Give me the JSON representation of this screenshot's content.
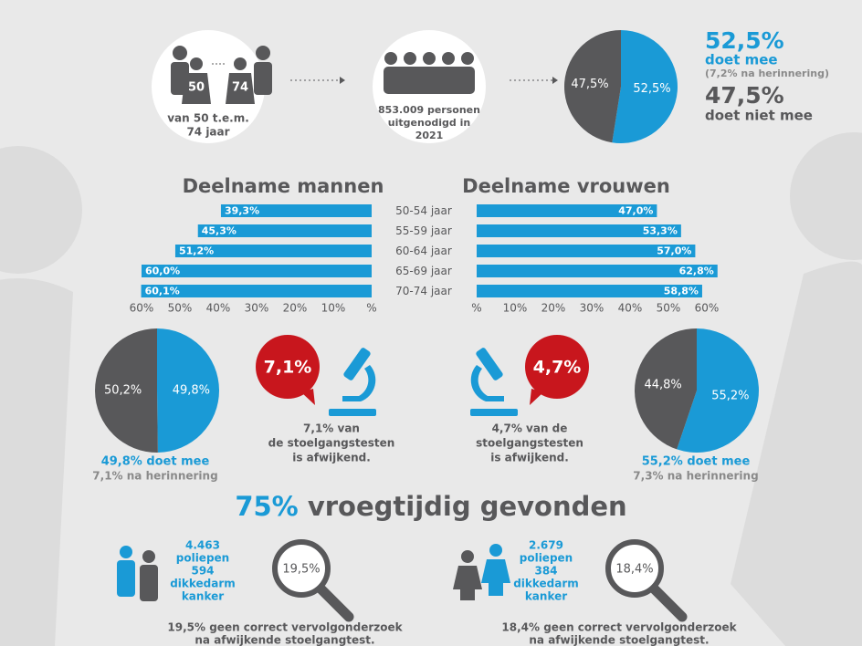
{
  "intro": {
    "age_from": "50",
    "age_to": "74",
    "age_lines": [
      "van 50 t.e.m.",
      "74 jaar"
    ],
    "invited_lines": [
      "853.009 personen",
      "uitgenodigd in",
      "2021"
    ]
  },
  "summary": {
    "participate": "52,5%",
    "participate_label": "doet mee",
    "reminder": "(7,2% na herinnering)",
    "not_participate": "47,5%",
    "not_participate_label": "doet niet mee"
  },
  "chart_data": [
    {
      "type": "pie",
      "values": [
        52.5,
        47.5
      ],
      "value_labels": [
        "52,5%",
        "47,5%"
      ],
      "colors": [
        "#1a9ad6",
        "#58585a"
      ]
    },
    {
      "type": "bar",
      "title": "Deelname mannen",
      "categories": [
        "50-54 jaar",
        "55-59 jaar",
        "60-64 jaar",
        "65-69 jaar",
        "70-74 jaar"
      ],
      "values": [
        39.3,
        45.3,
        51.2,
        60.0,
        60.1
      ],
      "value_labels": [
        "39,3%",
        "45,3%",
        "51,2%",
        "60,0%",
        "60,1%"
      ],
      "color": "#1a9ad6",
      "xlim": [
        0,
        60
      ],
      "x_reversed": true,
      "xticks": [
        {
          "value": 60,
          "label": "60%"
        },
        {
          "value": 50,
          "label": "50%"
        },
        {
          "value": 40,
          "label": "40%"
        },
        {
          "value": 30,
          "label": "30%"
        },
        {
          "value": 20,
          "label": "20%"
        },
        {
          "value": 10,
          "label": "10%"
        },
        {
          "value": 0,
          "label": "%"
        }
      ]
    },
    {
      "type": "bar",
      "title": "Deelname vrouwen",
      "values": [
        47.0,
        53.3,
        57.0,
        62.8,
        58.8
      ],
      "value_labels": [
        "47,0%",
        "53,3%",
        "57,0%",
        "62,8%",
        "58,8%"
      ],
      "color": "#1a9ad6",
      "xlim": [
        0,
        60
      ],
      "x_reversed": false,
      "xticks": [
        {
          "value": 0,
          "label": "%"
        },
        {
          "value": 10,
          "label": "10%"
        },
        {
          "value": 20,
          "label": "20%"
        },
        {
          "value": 30,
          "label": "30%"
        },
        {
          "value": 40,
          "label": "40%"
        },
        {
          "value": 50,
          "label": "50%"
        },
        {
          "value": 60,
          "label": "60%"
        }
      ]
    },
    {
      "type": "pie",
      "values": [
        49.8,
        50.2
      ],
      "value_labels": [
        "49,8%",
        "50,2%"
      ],
      "colors": [
        "#1a9ad6",
        "#58585a"
      ]
    },
    {
      "type": "pie",
      "values": [
        55.2,
        44.8
      ],
      "value_labels": [
        "55,2%",
        "44,8%"
      ],
      "colors": [
        "#1a9ad6",
        "#58585a"
      ]
    }
  ],
  "men": {
    "pie_caption": "49,8% doet mee",
    "reminder": "7,1% na herinnering",
    "badge": "7,1%",
    "abnormal_lines": [
      "7,1% van",
      "de stoelgangstesten",
      "is afwijkend."
    ],
    "found_lines": [
      "4.463",
      "poliepen",
      "594",
      "dikkedarm",
      "kanker"
    ],
    "followup_badge": "19,5%",
    "followup_lines": [
      "19,5% geen correct vervolgonderzoek",
      "na afwijkende stoelgangtest."
    ]
  },
  "women": {
    "pie_caption": "55,2% doet mee",
    "reminder": "7,3% na herinnering",
    "badge": "4,7%",
    "abnormal_lines": [
      "4,7% van de",
      "stoelgangstesten",
      "is afwijkend."
    ],
    "found_lines": [
      "2.679",
      "poliepen",
      "384",
      "dikkedarm",
      "kanker"
    ],
    "followup_badge": "18,4%",
    "followup_lines": [
      "18,4% geen correct vervolgonderzoek",
      "na afwijkende stoelgangtest."
    ]
  },
  "headline": {
    "highlight": "75%",
    "rest": "vroegtijdig gevonden"
  }
}
